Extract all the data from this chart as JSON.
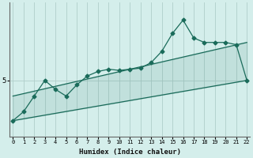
{
  "xlabel": "Humidex (Indice chaleur)",
  "background_color": "#d4eeeb",
  "line_color": "#1a6b5a",
  "grid_color": "#b0ceca",
  "x_ticks": [
    0,
    1,
    2,
    3,
    4,
    5,
    6,
    7,
    8,
    9,
    10,
    11,
    12,
    13,
    14,
    15,
    16,
    17,
    18,
    19,
    20,
    21,
    22
  ],
  "y_tick_label": "5",
  "y_tick_val": 5,
  "main_series_x": [
    0,
    1,
    2,
    3,
    4,
    5,
    6,
    7,
    8,
    9,
    10,
    11,
    12,
    13,
    14,
    15,
    16,
    17,
    18,
    19,
    20,
    21,
    22
  ],
  "main_series_y": [
    3.2,
    3.6,
    4.3,
    5.0,
    4.6,
    4.3,
    4.8,
    5.2,
    5.4,
    5.5,
    5.45,
    5.5,
    5.55,
    5.8,
    6.3,
    7.1,
    7.7,
    6.9,
    6.7,
    6.7,
    6.7,
    6.6,
    5.0
  ],
  "upper_line_x": [
    0,
    22
  ],
  "upper_line_y": [
    4.3,
    6.7
  ],
  "lower_line_x": [
    0,
    22
  ],
  "lower_line_y": [
    3.2,
    5.0
  ],
  "ylim": [
    2.5,
    8.5
  ],
  "xlim": [
    -0.3,
    22.3
  ]
}
